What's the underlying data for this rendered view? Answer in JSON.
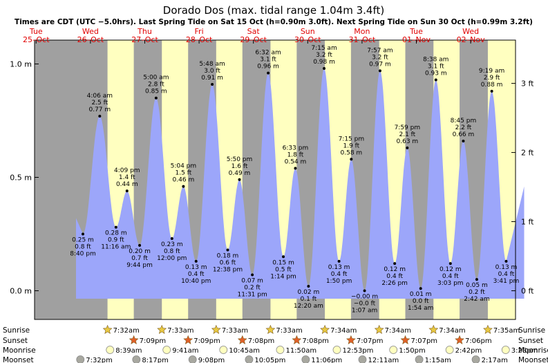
{
  "header": {
    "title": "Dorado Dos (max. tidal range 1.04m 3.4ft)",
    "subtitle": "Times are CDT (UTC −5.0hrs). Last Spring Tide on Sat 15 Oct (h=0.90m 3.0ft). Next Spring Tide on Sun 30 Oct (h=0.99m 3.2ft)"
  },
  "colors": {
    "night": "#a0a0a0",
    "day": "#ffffc0",
    "water": "#9ca6fa",
    "date_red": "#e00000",
    "sunrise_star": "#e8c840",
    "sunset_star": "#e06028",
    "moonrise": "#ffffc0",
    "moonset": "#a8a8a0"
  },
  "chart_data": {
    "type": "area",
    "title": "Dorado Dos (max. tidal range 1.04m 3.4ft)",
    "time_axis_start": "2022-10-25 00:00",
    "time_axis_end": "2022-11-02 23:59",
    "ylim_m": [
      -0.1,
      1.1
    ],
    "y_ticks_m": [
      {
        "value": 0.0,
        "label": "0.0 m"
      },
      {
        "value": 0.5,
        "label": "0.5 m"
      },
      {
        "value": 1.0,
        "label": "1.0 m"
      }
    ],
    "y_ticks_ft": [
      {
        "value": 0,
        "label": "0 ft"
      },
      {
        "value": 1,
        "label": "1 ft"
      },
      {
        "value": 2,
        "label": "2 ft"
      },
      {
        "value": 3,
        "label": "3 ft"
      }
    ],
    "days": [
      {
        "weekday": "Tue",
        "date": "25–Oct"
      },
      {
        "weekday": "Wed",
        "date": "26–Oct"
      },
      {
        "weekday": "Thu",
        "date": "27–Oct"
      },
      {
        "weekday": "Fri",
        "date": "28–Oct"
      },
      {
        "weekday": "Sat",
        "date": "29–Oct"
      },
      {
        "weekday": "Sun",
        "date": "30–Oct"
      },
      {
        "weekday": "Mon",
        "date": "31–Oct"
      },
      {
        "weekday": "Tue",
        "date": "01–Nov"
      },
      {
        "weekday": "Wed",
        "date": "02–Nov"
      }
    ],
    "tides": [
      {
        "day": 0,
        "time": "8:40 pm",
        "m": 0.25,
        "m_label": "0.25 m",
        "ft_label": "0.8 ft",
        "type": "low"
      },
      {
        "day": 1,
        "time": "4:06 am",
        "m": 0.77,
        "m_label": "0.77 m",
        "ft_label": "2.5 ft",
        "type": "high"
      },
      {
        "day": 1,
        "time": "11:16 am",
        "m": 0.28,
        "m_label": "0.28 m",
        "ft_label": "0.9 ft",
        "type": "low"
      },
      {
        "day": 1,
        "time": "4:09 pm",
        "m": 0.44,
        "m_label": "0.44 m",
        "ft_label": "1.4 ft",
        "type": "high"
      },
      {
        "day": 1,
        "time": "9:44 pm",
        "m": 0.2,
        "m_label": "0.20 m",
        "ft_label": "0.7 ft",
        "type": "low"
      },
      {
        "day": 2,
        "time": "5:00 am",
        "m": 0.85,
        "m_label": "0.85 m",
        "ft_label": "2.8 ft",
        "type": "high"
      },
      {
        "day": 2,
        "time": "12:00 pm",
        "m": 0.23,
        "m_label": "0.23 m",
        "ft_label": "0.8 ft",
        "type": "low"
      },
      {
        "day": 2,
        "time": "5:04 pm",
        "m": 0.46,
        "m_label": "0.46 m",
        "ft_label": "1.5 ft",
        "type": "high"
      },
      {
        "day": 2,
        "time": "10:40 pm",
        "m": 0.13,
        "m_label": "0.13 m",
        "ft_label": "0.4 ft",
        "type": "low"
      },
      {
        "day": 3,
        "time": "5:48 am",
        "m": 0.91,
        "m_label": "0.91 m",
        "ft_label": "3.0 ft",
        "type": "high"
      },
      {
        "day": 3,
        "time": "12:38 pm",
        "m": 0.18,
        "m_label": "0.18 m",
        "ft_label": "0.6 ft",
        "type": "low"
      },
      {
        "day": 3,
        "time": "5:50 pm",
        "m": 0.49,
        "m_label": "0.49 m",
        "ft_label": "1.6 ft",
        "type": "high"
      },
      {
        "day": 3,
        "time": "11:31 pm",
        "m": 0.07,
        "m_label": "0.07 m",
        "ft_label": "0.2 ft",
        "type": "low"
      },
      {
        "day": 4,
        "time": "6:32 am",
        "m": 0.96,
        "m_label": "0.96 m",
        "ft_label": "3.1 ft",
        "type": "high"
      },
      {
        "day": 4,
        "time": "1:14 pm",
        "m": 0.15,
        "m_label": "0.15 m",
        "ft_label": "0.5 ft",
        "type": "low"
      },
      {
        "day": 4,
        "time": "6:33 pm",
        "m": 0.54,
        "m_label": "0.54 m",
        "ft_label": "1.8 ft",
        "type": "high"
      },
      {
        "day": 5,
        "time": "12:20 am",
        "m": 0.02,
        "m_label": "0.02 m",
        "ft_label": "0.1 ft",
        "type": "low"
      },
      {
        "day": 5,
        "time": "7:15 am",
        "m": 0.98,
        "m_label": "0.98 m",
        "ft_label": "3.2 ft",
        "type": "high"
      },
      {
        "day": 5,
        "time": "1:50 pm",
        "m": 0.13,
        "m_label": "0.13 m",
        "ft_label": "0.4 ft",
        "type": "low"
      },
      {
        "day": 5,
        "time": "7:15 pm",
        "m": 0.58,
        "m_label": "0.58 m",
        "ft_label": "1.9 ft",
        "type": "high"
      },
      {
        "day": 6,
        "time": "1:07 am",
        "m": -0.0,
        "m_label": "−0.00 m",
        "ft_label": "−0.0 ft",
        "type": "low"
      },
      {
        "day": 6,
        "time": "7:57 am",
        "m": 0.97,
        "m_label": "0.97 m",
        "ft_label": "3.2 ft",
        "type": "high"
      },
      {
        "day": 6,
        "time": "2:26 pm",
        "m": 0.12,
        "m_label": "0.12 m",
        "ft_label": "0.4 ft",
        "type": "low"
      },
      {
        "day": 6,
        "time": "7:59 pm",
        "m": 0.63,
        "m_label": "0.63 m",
        "ft_label": "2.1 ft",
        "type": "high"
      },
      {
        "day": 7,
        "time": "1:54 am",
        "m": 0.01,
        "m_label": "0.01 m",
        "ft_label": "0.0 ft",
        "type": "low"
      },
      {
        "day": 7,
        "time": "8:38 am",
        "m": 0.93,
        "m_label": "0.93 m",
        "ft_label": "3.1 ft",
        "type": "high"
      },
      {
        "day": 7,
        "time": "3:03 pm",
        "m": 0.12,
        "m_label": "0.12 m",
        "ft_label": "0.4 ft",
        "type": "low"
      },
      {
        "day": 7,
        "time": "8:45 pm",
        "m": 0.66,
        "m_label": "0.66 m",
        "ft_label": "2.2 ft",
        "type": "high"
      },
      {
        "day": 8,
        "time": "2:42 am",
        "m": 0.05,
        "m_label": "0.05 m",
        "ft_label": "0.2 ft",
        "type": "low"
      },
      {
        "day": 8,
        "time": "9:19 am",
        "m": 0.88,
        "m_label": "0.88 m",
        "ft_label": "2.9 ft",
        "type": "high"
      },
      {
        "day": 8,
        "time": "3:41 pm",
        "m": 0.13,
        "m_label": "0.13 m",
        "ft_label": "0.4 ft",
        "type": "low"
      }
    ],
    "sun_moon": {
      "labels": {
        "sunrise": "Sunrise",
        "sunset": "Sunset",
        "moonrise": "Moonrise",
        "moonset": "Moonset"
      },
      "sunrise": [
        {
          "day": 1,
          "time": "7:32am"
        },
        {
          "day": 2,
          "time": "7:33am"
        },
        {
          "day": 3,
          "time": "7:33am"
        },
        {
          "day": 4,
          "time": "7:33am"
        },
        {
          "day": 5,
          "time": "7:34am"
        },
        {
          "day": 6,
          "time": "7:34am"
        },
        {
          "day": 7,
          "time": "7:34am"
        },
        {
          "day": 8,
          "time": "7:35am"
        }
      ],
      "sunset": [
        {
          "day": 1,
          "time": "7:09pm"
        },
        {
          "day": 2,
          "time": "7:09pm"
        },
        {
          "day": 3,
          "time": "7:08pm"
        },
        {
          "day": 4,
          "time": "7:08pm"
        },
        {
          "day": 5,
          "time": "7:07pm"
        },
        {
          "day": 6,
          "time": "7:07pm"
        },
        {
          "day": 7,
          "time": "7:06pm"
        }
      ],
      "moonrise": [
        {
          "day": 1,
          "time": "8:39am"
        },
        {
          "day": 2,
          "time": "9:41am"
        },
        {
          "day": 3,
          "time": "10:45am"
        },
        {
          "day": 4,
          "time": "11:50am"
        },
        {
          "day": 5,
          "time": "12:53pm"
        },
        {
          "day": 6,
          "time": "1:50pm"
        },
        {
          "day": 7,
          "time": "2:42pm"
        },
        {
          "day": 8,
          "time": "3:28pm"
        }
      ],
      "moonset": [
        {
          "day": 0,
          "time": "7:32pm"
        },
        {
          "day": 1,
          "time": "8:17pm"
        },
        {
          "day": 2,
          "time": "9:08pm"
        },
        {
          "day": 3,
          "time": "10:05pm"
        },
        {
          "day": 4,
          "time": "11:06pm"
        },
        {
          "day": 6,
          "time": "12:11am"
        },
        {
          "day": 7,
          "time": "1:15am"
        },
        {
          "day": 8,
          "time": "2:17am"
        }
      ]
    }
  }
}
